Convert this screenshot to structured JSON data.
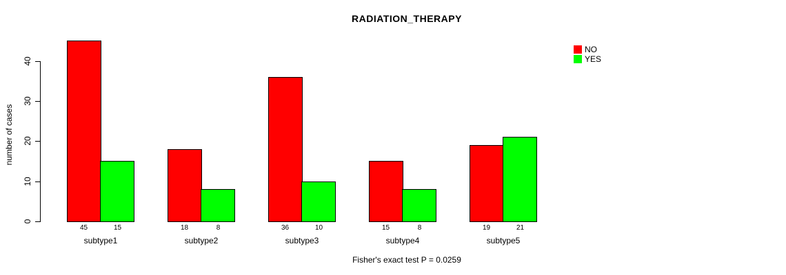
{
  "title": "RADIATION_THERAPY",
  "ylabel": "number of cases",
  "caption": "Fisher's exact test P = 0.0259",
  "legend": {
    "items": [
      {
        "label": "NO",
        "color": "#ff0000"
      },
      {
        "label": "YES",
        "color": "#00ff00"
      }
    ]
  },
  "chart_data": {
    "type": "bar",
    "title": "RADIATION_THERAPY",
    "xlabel": "",
    "ylabel": "number of cases",
    "categories": [
      "subtype1",
      "subtype2",
      "subtype3",
      "subtype4",
      "subtype5"
    ],
    "series": [
      {
        "name": "NO",
        "color": "#ff0000",
        "values": [
          45,
          18,
          36,
          15,
          19
        ]
      },
      {
        "name": "YES",
        "color": "#00ff00",
        "values": [
          15,
          8,
          10,
          8,
          21
        ]
      }
    ],
    "bar_value_labels": [
      [
        "45",
        "15"
      ],
      [
        "18",
        "8"
      ],
      [
        "36",
        "10"
      ],
      [
        "15",
        "8"
      ],
      [
        "19",
        "21"
      ]
    ],
    "ylim": [
      0,
      45
    ],
    "yticks": [
      0,
      10,
      20,
      30,
      40
    ],
    "grid": false,
    "legend_position": "top-right",
    "annotation": "Fisher's exact test P = 0.0259"
  }
}
